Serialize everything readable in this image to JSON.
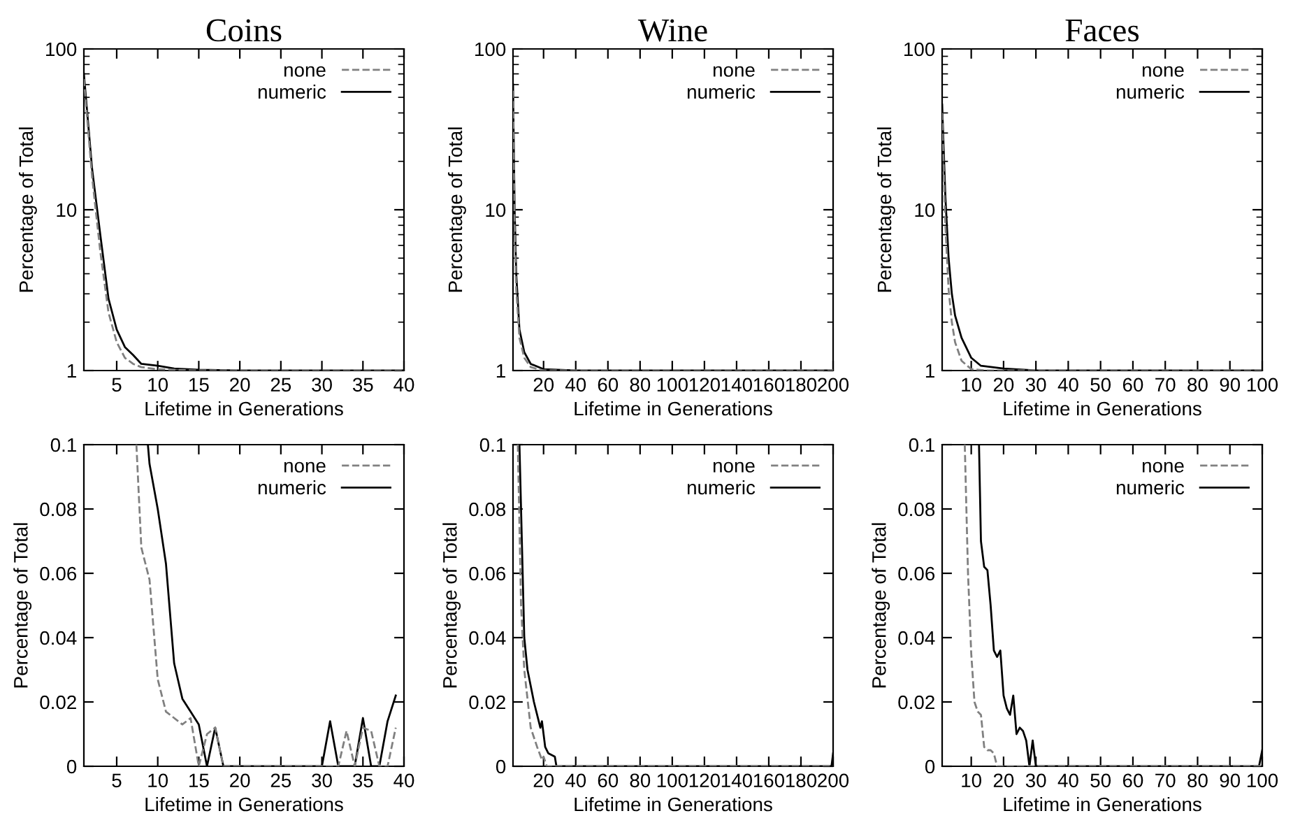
{
  "chart_data": [
    {
      "type": "line",
      "title": "Coins",
      "xlabel": "Lifetime in Generations",
      "ylabel": "Percentage of Total",
      "log": true,
      "xlim": [
        1,
        40
      ],
      "xticks": [
        5,
        10,
        15,
        20,
        25,
        30,
        35,
        40
      ],
      "ylim": [
        1,
        100
      ],
      "yticks": [
        1,
        10,
        100
      ],
      "legend": "top right",
      "grid": false,
      "series": [
        {
          "name": "none",
          "color": "#808080",
          "line_style": "dashed",
          "x": [
            1,
            2,
            3,
            4,
            5,
            6,
            7,
            8,
            10,
            15,
            40
          ],
          "values": [
            65,
            16,
            5.5,
            2.3,
            1.5,
            1.2,
            1.1,
            1.05,
            1.02,
            1.0,
            1.0
          ]
        },
        {
          "name": "numeric",
          "color": "#000000",
          "line_style": "solid",
          "x": [
            1,
            2,
            3,
            4,
            5,
            6,
            7,
            8,
            10,
            12,
            15,
            20,
            40
          ],
          "values": [
            70,
            18,
            7,
            2.8,
            1.8,
            1.4,
            1.25,
            1.1,
            1.07,
            1.03,
            1.01,
            1.0,
            1.0
          ]
        }
      ]
    },
    {
      "type": "line",
      "title": "Wine",
      "xlabel": "Lifetime in Generations",
      "ylabel": "Percentage of Total",
      "log": true,
      "xlim": [
        1,
        200
      ],
      "xticks": [
        20,
        40,
        60,
        80,
        100,
        120,
        140,
        160,
        180,
        200
      ],
      "ylim": [
        1,
        100
      ],
      "yticks": [
        1,
        10,
        100
      ],
      "legend": "top right",
      "grid": false,
      "series": [
        {
          "name": "none",
          "color": "#808080",
          "line_style": "dashed",
          "x": [
            1,
            2,
            3,
            5,
            8,
            12,
            20,
            200
          ],
          "values": [
            55,
            8,
            3.2,
            1.6,
            1.2,
            1.05,
            1.0,
            1.0
          ]
        },
        {
          "name": "numeric",
          "color": "#000000",
          "line_style": "solid",
          "x": [
            1,
            2,
            3,
            5,
            8,
            12,
            20,
            40,
            200
          ],
          "values": [
            60,
            10,
            4,
            1.8,
            1.3,
            1.1,
            1.02,
            1.0,
            1.0
          ]
        }
      ]
    },
    {
      "type": "line",
      "title": "Faces",
      "xlabel": "Lifetime in Generations",
      "ylabel": "Percentage of Total",
      "log": true,
      "xlim": [
        1,
        100
      ],
      "xticks": [
        10,
        20,
        30,
        40,
        50,
        60,
        70,
        80,
        90,
        100
      ],
      "ylim": [
        1,
        100
      ],
      "yticks": [
        1,
        10,
        100
      ],
      "legend": "top right",
      "grid": false,
      "series": [
        {
          "name": "none",
          "color": "#808080",
          "line_style": "dashed",
          "x": [
            1,
            2,
            3,
            4,
            5,
            7,
            10,
            15,
            100
          ],
          "values": [
            40,
            8,
            3.2,
            2,
            1.5,
            1.15,
            1.02,
            1.0,
            1.0
          ]
        },
        {
          "name": "numeric",
          "color": "#000000",
          "line_style": "solid",
          "x": [
            1,
            2,
            3,
            4,
            5,
            7,
            10,
            13,
            20,
            30,
            100
          ],
          "values": [
            45,
            12,
            5,
            3,
            2.2,
            1.6,
            1.2,
            1.07,
            1.03,
            1.0,
            1.0
          ]
        }
      ]
    },
    {
      "type": "line",
      "xlabel": "Lifetime in Generations",
      "ylabel": "Percentage of Total",
      "xlim": [
        1,
        40
      ],
      "xticks": [
        5,
        10,
        15,
        20,
        25,
        30,
        35,
        40
      ],
      "ylim": [
        0,
        0.1
      ],
      "yticks": [
        0,
        0.02,
        0.04,
        0.06,
        0.08,
        0.1
      ],
      "legend": "top right",
      "grid": false,
      "series": [
        {
          "name": "none",
          "color": "#808080",
          "line_style": "dashed",
          "x": [
            7.4,
            8,
            9,
            10,
            11,
            12,
            13,
            14,
            15,
            16,
            17,
            18,
            32,
            33,
            34,
            35,
            36,
            37,
            38,
            39
          ],
          "values": [
            0.1,
            0.068,
            0.058,
            0.027,
            0.017,
            0.015,
            0.013,
            0.015,
            0,
            0.01,
            0.012,
            0,
            0,
            0.011,
            0,
            0.012,
            0.011,
            0,
            0,
            0.012
          ]
        },
        {
          "name": "numeric",
          "color": "#000000",
          "line_style": "solid",
          "x": [
            8.8,
            9,
            10,
            11,
            12,
            13,
            14,
            15,
            16,
            17,
            18,
            30,
            31,
            32,
            33,
            34,
            35,
            36,
            37,
            38,
            39
          ],
          "values": [
            0.1,
            0.094,
            0.08,
            0.063,
            0.032,
            0.021,
            0.017,
            0.013,
            0,
            0.012,
            0,
            0,
            0.014,
            0,
            0,
            0,
            0.015,
            0,
            0,
            0.014,
            0.022
          ]
        }
      ]
    },
    {
      "type": "line",
      "xlabel": "Lifetime in Generations",
      "ylabel": "Percentage of Total",
      "xlim": [
        1,
        200
      ],
      "xticks": [
        20,
        40,
        60,
        80,
        100,
        120,
        140,
        160,
        180,
        200
      ],
      "ylim": [
        0,
        0.1
      ],
      "yticks": [
        0,
        0.02,
        0.04,
        0.06,
        0.08,
        0.1
      ],
      "legend": "top right",
      "grid": false,
      "series": [
        {
          "name": "none",
          "color": "#808080",
          "line_style": "dashed",
          "x": [
            4,
            6,
            8,
            12,
            16,
            19,
            20,
            22,
            200
          ],
          "values": [
            0.1,
            0.05,
            0.03,
            0.012,
            0.006,
            0.002,
            0.003,
            0,
            0
          ]
        },
        {
          "name": "numeric",
          "color": "#000000",
          "line_style": "solid",
          "x": [
            5,
            8,
            10,
            14,
            18,
            19,
            21,
            23,
            27,
            28,
            199,
            200
          ],
          "values": [
            0.1,
            0.04,
            0.03,
            0.02,
            0.012,
            0.014,
            0.006,
            0.004,
            0.003,
            0,
            0,
            0.004
          ]
        }
      ]
    },
    {
      "type": "line",
      "xlabel": "Lifetime in Generations",
      "ylabel": "Percentage of Total",
      "xlim": [
        1,
        100
      ],
      "xticks": [
        10,
        20,
        30,
        40,
        50,
        60,
        70,
        80,
        90,
        100
      ],
      "ylim": [
        0,
        0.1
      ],
      "yticks": [
        0,
        0.02,
        0.04,
        0.06,
        0.08,
        0.1
      ],
      "legend": "top right",
      "grid": false,
      "series": [
        {
          "name": "none",
          "color": "#808080",
          "line_style": "dashed",
          "x": [
            8,
            9,
            10,
            11,
            12,
            13,
            14,
            15,
            16,
            17,
            18,
            100
          ],
          "values": [
            0.1,
            0.06,
            0.035,
            0.02,
            0.017,
            0.016,
            0.006,
            0.005,
            0.005,
            0.004,
            0,
            0
          ]
        },
        {
          "name": "numeric",
          "color": "#000000",
          "line_style": "solid",
          "x": [
            12.4,
            13,
            14,
            15,
            16,
            17,
            18,
            19,
            20,
            21,
            22,
            23,
            24,
            25,
            26,
            27,
            28,
            29,
            30,
            99,
            100
          ],
          "values": [
            0.1,
            0.07,
            0.062,
            0.061,
            0.05,
            0.036,
            0.034,
            0.036,
            0.022,
            0.018,
            0.016,
            0.022,
            0.01,
            0.012,
            0.011,
            0.008,
            0,
            0.008,
            0,
            0,
            0.005
          ]
        }
      ]
    }
  ]
}
